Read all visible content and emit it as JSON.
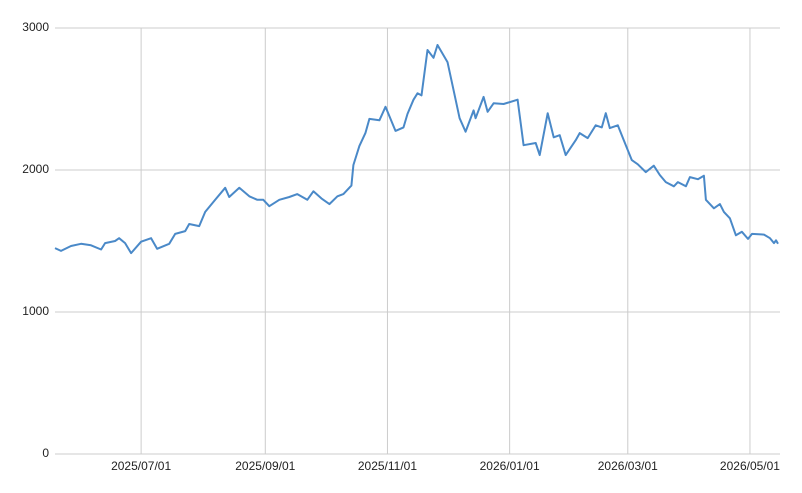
{
  "chart_data": {
    "type": "line",
    "x": [
      "2025/05/19",
      "2025/05/22",
      "2025/05/27",
      "2025/06/01",
      "2025/06/06",
      "2025/06/11",
      "2025/06/13",
      "2025/06/18",
      "2025/06/20",
      "2025/06/23",
      "2025/06/26",
      "2025/07/01",
      "2025/07/06",
      "2025/07/09",
      "2025/07/15",
      "2025/07/18",
      "2025/07/23",
      "2025/07/25",
      "2025/07/30",
      "2025/08/02",
      "2025/08/07",
      "2025/08/12",
      "2025/08/14",
      "2025/08/19",
      "2025/08/24",
      "2025/08/28",
      "2025/08/31",
      "2025/09/03",
      "2025/09/08",
      "2025/09/13",
      "2025/09/17",
      "2025/09/22",
      "2025/09/25",
      "2025/09/29",
      "2025/10/03",
      "2025/10/07",
      "2025/10/10",
      "2025/10/14",
      "2025/10/15",
      "2025/10/18",
      "2025/10/21",
      "2025/10/23",
      "2025/10/28",
      "2025/10/31",
      "2025/11/05",
      "2025/11/09",
      "2025/11/11",
      "2025/11/14",
      "2025/11/16",
      "2025/11/18",
      "2025/11/21",
      "2025/11/24",
      "2025/11/26",
      "2025/12/01",
      "2025/12/04",
      "2025/12/07",
      "2025/12/10",
      "2025/12/14",
      "2025/12/15",
      "2025/12/19",
      "2025/12/21",
      "2025/12/24",
      "2025/12/29",
      "2026/01/05",
      "2026/01/08",
      "2026/01/14",
      "2026/01/16",
      "2026/01/20",
      "2026/01/23",
      "2026/01/26",
      "2026/01/29",
      "2026/02/03",
      "2026/02/05",
      "2026/02/09",
      "2026/02/13",
      "2026/02/16",
      "2026/02/18",
      "2026/02/20",
      "2026/02/24",
      "2026/02/27",
      "2026/03/03",
      "2026/03/06",
      "2026/03/10",
      "2026/03/14",
      "2026/03/17",
      "2026/03/20",
      "2026/03/24",
      "2026/03/26",
      "2026/03/30",
      "2026/04/01",
      "2026/04/05",
      "2026/04/08",
      "2026/04/09",
      "2026/04/13",
      "2026/04/16",
      "2026/04/18",
      "2026/04/21",
      "2026/04/24",
      "2026/04/27",
      "2026/04/30",
      "2026/05/02",
      "2026/05/08",
      "2026/05/11",
      "2026/05/13",
      "2026/05/14",
      "2026/05/15"
    ],
    "values": [
      1450,
      1430,
      1465,
      1480,
      1470,
      1440,
      1485,
      1500,
      1520,
      1485,
      1415,
      1495,
      1520,
      1445,
      1480,
      1550,
      1570,
      1620,
      1605,
      1705,
      1790,
      1875,
      1810,
      1875,
      1815,
      1790,
      1790,
      1745,
      1790,
      1810,
      1830,
      1790,
      1850,
      1800,
      1760,
      1815,
      1830,
      1890,
      2035,
      2170,
      2260,
      2360,
      2350,
      2445,
      2275,
      2300,
      2395,
      2495,
      2540,
      2525,
      2845,
      2790,
      2880,
      2760,
      2565,
      2365,
      2270,
      2420,
      2365,
      2515,
      2410,
      2470,
      2465,
      2495,
      2175,
      2190,
      2105,
      2400,
      2230,
      2245,
      2105,
      2210,
      2260,
      2225,
      2315,
      2300,
      2400,
      2295,
      2315,
      2210,
      2070,
      2040,
      1985,
      2030,
      1965,
      1915,
      1885,
      1915,
      1885,
      1950,
      1935,
      1960,
      1790,
      1730,
      1760,
      1705,
      1660,
      1540,
      1565,
      1515,
      1550,
      1545,
      1520,
      1485,
      1505,
      1480
    ],
    "color": "#4a89c8",
    "xlim": [
      "2025/05/19",
      "2026/05/16"
    ],
    "xticks": [
      "2025/07/01",
      "2025/09/01",
      "2025/11/01",
      "2026/01/01",
      "2026/03/01",
      "2026/05/01"
    ],
    "ylim": [
      0,
      3000
    ],
    "yticks": [
      0,
      1000,
      2000,
      3000
    ],
    "grid": true
  }
}
